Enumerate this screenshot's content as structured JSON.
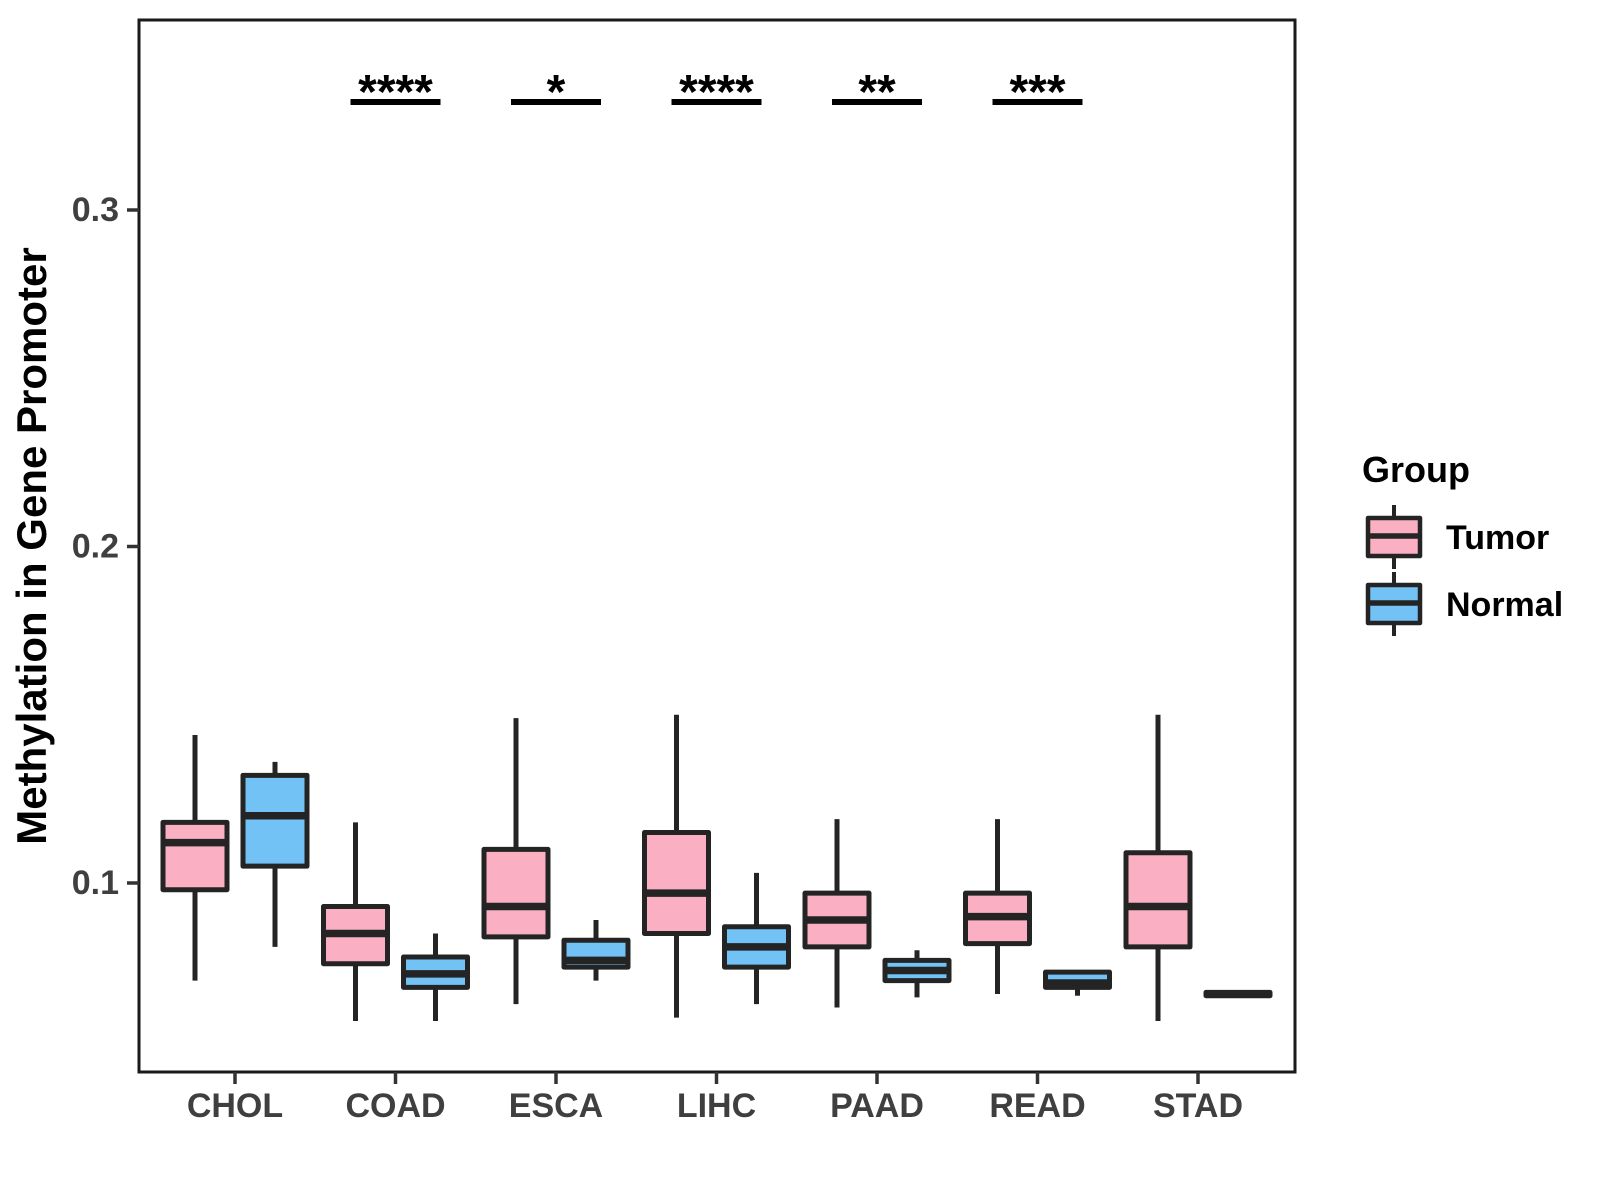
{
  "chart_data": {
    "type": "boxplot",
    "title": "",
    "xlabel": "",
    "ylabel": "Methylation in Gene Promoter",
    "categories": [
      "CHOL",
      "COAD",
      "ESCA",
      "LIHC",
      "PAAD",
      "READ",
      "STAD"
    ],
    "yticks": [
      0.1,
      0.2,
      0.3
    ],
    "ytick_labels": [
      "0.1",
      "0.2",
      "0.3"
    ],
    "ylim": [
      0.044,
      0.356
    ],
    "grid": "off",
    "legend": {
      "title": "Group",
      "position": "right",
      "items": [
        {
          "label": "Tumor",
          "color": "#FBAFC2"
        },
        {
          "label": "Normal",
          "color": "#72C2F5"
        }
      ]
    },
    "significance": [
      "",
      "****",
      "*",
      "****",
      "**",
      "***",
      ""
    ],
    "series": [
      {
        "name": "Tumor",
        "color": "#FBAFC2",
        "boxes": [
          {
            "category": "CHOL",
            "low": 0.071,
            "q1": 0.098,
            "median": 0.112,
            "q3": 0.118,
            "high": 0.144
          },
          {
            "category": "COAD",
            "low": 0.059,
            "q1": 0.076,
            "median": 0.085,
            "q3": 0.093,
            "high": 0.118
          },
          {
            "category": "ESCA",
            "low": 0.064,
            "q1": 0.084,
            "median": 0.093,
            "q3": 0.11,
            "high": 0.149
          },
          {
            "category": "LIHC",
            "low": 0.06,
            "q1": 0.085,
            "median": 0.097,
            "q3": 0.115,
            "high": 0.15
          },
          {
            "category": "PAAD",
            "low": 0.063,
            "q1": 0.081,
            "median": 0.089,
            "q3": 0.097,
            "high": 0.119
          },
          {
            "category": "READ",
            "low": 0.067,
            "q1": 0.082,
            "median": 0.09,
            "q3": 0.097,
            "high": 0.119
          },
          {
            "category": "STAD",
            "low": 0.059,
            "q1": 0.081,
            "median": 0.093,
            "q3": 0.109,
            "high": 0.15
          }
        ]
      },
      {
        "name": "Normal",
        "color": "#72C2F5",
        "boxes": [
          {
            "category": "CHOL",
            "low": 0.081,
            "q1": 0.105,
            "median": 0.12,
            "q3": 0.132,
            "high": 0.136
          },
          {
            "category": "COAD",
            "low": 0.059,
            "q1": 0.069,
            "median": 0.073,
            "q3": 0.078,
            "high": 0.085
          },
          {
            "category": "ESCA",
            "low": 0.071,
            "q1": 0.075,
            "median": 0.077,
            "q3": 0.083,
            "high": 0.089
          },
          {
            "category": "LIHC",
            "low": 0.064,
            "q1": 0.075,
            "median": 0.081,
            "q3": 0.087,
            "high": 0.103
          },
          {
            "category": "PAAD",
            "low": 0.066,
            "q1": 0.071,
            "median": 0.074,
            "q3": 0.077,
            "high": 0.08
          },
          {
            "category": "READ",
            "low": 0.0665,
            "q1": 0.069,
            "median": 0.0703,
            "q3": 0.0735,
            "high": 0.074
          },
          {
            "category": "STAD",
            "low": 0.0665,
            "q1": 0.0665,
            "median": 0.067,
            "q3": 0.0675,
            "high": 0.0675
          }
        ]
      }
    ],
    "colors": {
      "tumor_fill": "#FBAFC2",
      "normal_fill": "#72C2F5",
      "box_border": "#242424",
      "significance": "#000000",
      "tick_text": "#3F3F3F",
      "axis_title_text": "#000000",
      "panel_border": "#1A1A1A"
    }
  }
}
